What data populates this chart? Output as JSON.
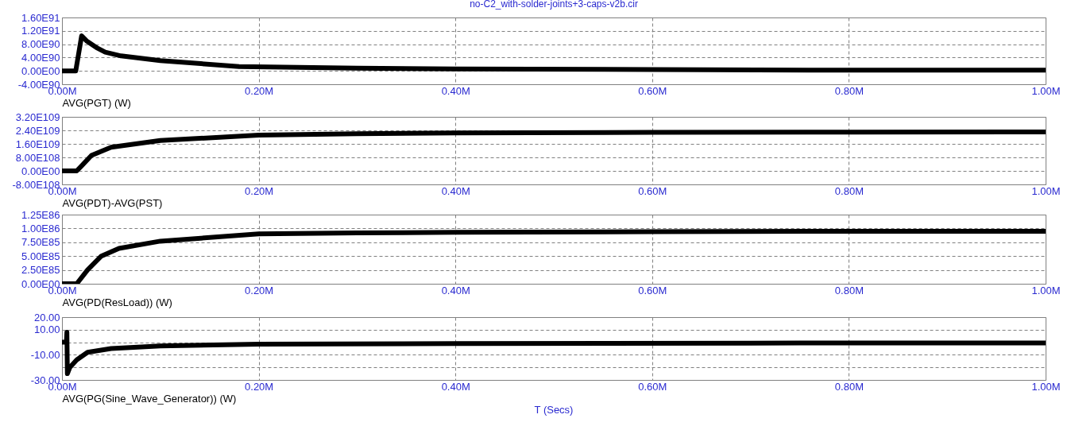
{
  "chart_data": [
    {
      "type": "line",
      "title": "no-C2_with-solder-joints+3-caps-v2b.cir",
      "x": [
        0,
        0.014,
        0.02,
        0.025,
        0.035,
        0.044,
        0.06,
        0.1,
        0.18,
        0.3,
        0.4,
        0.6,
        0.8,
        1.0
      ],
      "series": [
        {
          "name": "AVG(PGT) (W)",
          "color": "#000000",
          "values": [
            0,
            0,
            1.05e+91,
            9e+90,
            7e+90,
            5.6e+90,
            4.5e+90,
            3.1e+90,
            1.3e+90,
            8e+89,
            6e+89,
            4e+89,
            2e+89,
            2e+89
          ]
        }
      ],
      "xlim": [
        0,
        1
      ],
      "xticks": [
        {
          "value": 0,
          "label": "0.00M"
        },
        {
          "value": 0.2,
          "label": "0.20M"
        },
        {
          "value": 0.4,
          "label": "0.40M"
        },
        {
          "value": 0.6,
          "label": "0.60M"
        },
        {
          "value": 0.8,
          "label": "0.80M"
        },
        {
          "value": 1,
          "label": "1.00M"
        }
      ],
      "ylim": [
        -4e+90,
        1.6e+91
      ],
      "yticks": [
        {
          "value": -4e+90,
          "label": "-4.00E90"
        },
        {
          "value": 0,
          "label": "0.00E00"
        },
        {
          "value": 4e+90,
          "label": "4.00E90"
        },
        {
          "value": 8e+90,
          "label": "8.00E90"
        },
        {
          "value": 1.2e+91,
          "label": "1.20E91"
        },
        {
          "value": 1.6e+91,
          "label": "1.60E91"
        }
      ],
      "grid": true
    },
    {
      "type": "line",
      "x": [
        0,
        0.015,
        0.02,
        0.03,
        0.05,
        0.1,
        0.2,
        0.3,
        0.4,
        0.6,
        0.8,
        1.0
      ],
      "series": [
        {
          "name": "AVG(PDT)-AVG(PST)",
          "color": "#000000",
          "values": [
            0,
            0,
            3e+108,
            9.2e+108,
            1.4e+109,
            1.8e+109,
            2.12e+109,
            2.2e+109,
            2.25e+109,
            2.28e+109,
            2.3e+109,
            2.31e+109
          ]
        }
      ],
      "xlim": [
        0,
        1
      ],
      "xticks": [
        {
          "value": 0,
          "label": "0.00M"
        },
        {
          "value": 0.2,
          "label": "0.20M"
        },
        {
          "value": 0.4,
          "label": "0.40M"
        },
        {
          "value": 0.6,
          "label": "0.60M"
        },
        {
          "value": 0.8,
          "label": "0.80M"
        },
        {
          "value": 1,
          "label": "1.00M"
        }
      ],
      "ylim": [
        -8e+108,
        3.2e+109
      ],
      "yticks": [
        {
          "value": -8e+108,
          "label": "-8.00E108"
        },
        {
          "value": 0,
          "label": "0.00E00"
        },
        {
          "value": 8e+108,
          "label": "8.00E108"
        },
        {
          "value": 1.6e+109,
          "label": "1.60E109"
        },
        {
          "value": 2.4e+109,
          "label": "2.40E109"
        },
        {
          "value": 3.2e+109,
          "label": "3.20E109"
        }
      ],
      "grid": true
    },
    {
      "type": "line",
      "x": [
        0,
        0.015,
        0.026,
        0.04,
        0.058,
        0.1,
        0.2,
        0.3,
        0.4,
        0.6,
        0.8,
        1.0
      ],
      "series": [
        {
          "name": "AVG(PD(ResLoad)) (W)",
          "color": "#000000",
          "values": [
            0,
            0,
            2.5e+85,
            5e+85,
            6.4e+85,
            7.7e+85,
            9e+85,
            9.2e+85,
            9.3e+85,
            9.4e+85,
            9.5e+85,
            9.5e+85
          ]
        }
      ],
      "xlim": [
        0,
        1
      ],
      "xticks": [
        {
          "value": 0,
          "label": "0.00M"
        },
        {
          "value": 0.2,
          "label": "0.20M"
        },
        {
          "value": 0.4,
          "label": "0.40M"
        },
        {
          "value": 0.6,
          "label": "0.60M"
        },
        {
          "value": 0.8,
          "label": "0.80M"
        },
        {
          "value": 1,
          "label": "1.00M"
        }
      ],
      "ylim": [
        0,
        1.25e+86
      ],
      "yticks": [
        {
          "value": 0,
          "label": "0.00E00"
        },
        {
          "value": 2.5e+85,
          "label": "2.50E85"
        },
        {
          "value": 5e+85,
          "label": "5.00E85"
        },
        {
          "value": 7.5e+85,
          "label": "7.50E85"
        },
        {
          "value": 1e+86,
          "label": "1.00E86"
        },
        {
          "value": 1.25e+86,
          "label": "1.25E86"
        }
      ],
      "grid": true
    },
    {
      "type": "line",
      "xlabel": "T (Secs)",
      "x": [
        0,
        0.0045,
        0.005,
        0.0055,
        0.008,
        0.015,
        0.026,
        0.05,
        0.1,
        0.2,
        0.4,
        0.7,
        0.75,
        1.0
      ],
      "series": [
        {
          "name": "AVG(PG(Sine_Wave_Generator)) (W)",
          "color": "#000000",
          "values": [
            0,
            0,
            8,
            -25,
            -20,
            -14,
            -8,
            -5,
            -3,
            -1.5,
            -1,
            -0.8,
            -0.5,
            -0.5
          ]
        }
      ],
      "xlim": [
        0,
        1
      ],
      "xticks": [
        {
          "value": 0,
          "label": "0.00M"
        },
        {
          "value": 0.2,
          "label": "0.20M"
        },
        {
          "value": 0.4,
          "label": "0.40M"
        },
        {
          "value": 0.6,
          "label": "0.60M"
        },
        {
          "value": 0.8,
          "label": "0.80M"
        },
        {
          "value": 1,
          "label": "1.00M"
        }
      ],
      "ylim": [
        -30,
        20
      ],
      "yticks": [
        {
          "value": -30,
          "label": "-30.00"
        },
        {
          "value": -20,
          "label": null
        },
        {
          "value": -10,
          "label": "-10.00"
        },
        {
          "value": 0,
          "label": null
        },
        {
          "value": 10,
          "label": "10.00"
        },
        {
          "value": 20,
          "label": "20.00"
        }
      ],
      "grid": true
    }
  ]
}
